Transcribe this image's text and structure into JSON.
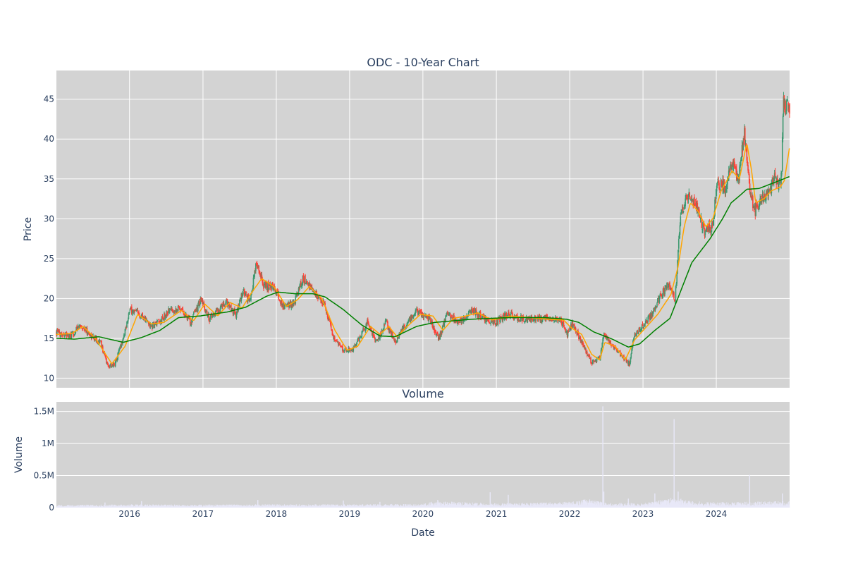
{
  "chart_data": [
    {
      "type": "candlestick",
      "title": "ODC - 10-Year Chart",
      "ylabel": "Price",
      "ylim": [
        8.8,
        48.6
      ],
      "xlim": [
        "2015-01-02",
        "2024-12-31"
      ],
      "y_ticks": [
        10,
        15,
        20,
        25,
        30,
        35,
        40,
        45
      ],
      "grid": true,
      "colors": {
        "up": "#3d9970",
        "down": "#ff4136",
        "ma_short": "#ffa500",
        "ma_long": "#008000",
        "plot_bg": "#d3d3d3",
        "grid": "#ffffff"
      },
      "series": [
        {
          "kind": "ohlc",
          "anchors": [
            [
              "2015-01-02",
              15.8
            ],
            [
              "2015-03-15",
              15.2
            ],
            [
              "2015-05-01",
              16.7
            ],
            [
              "2015-06-15",
              15.5
            ],
            [
              "2015-08-10",
              14.5
            ],
            [
              "2015-09-15",
              11.5
            ],
            [
              "2015-10-20",
              11.8
            ],
            [
              "2015-12-01",
              15.0
            ],
            [
              "2016-01-01",
              18.5
            ],
            [
              "2016-03-01",
              18.0
            ],
            [
              "2016-04-15",
              16.5
            ],
            [
              "2016-06-01",
              17.0
            ],
            [
              "2016-07-15",
              18.5
            ],
            [
              "2016-09-15",
              18.8
            ],
            [
              "2016-11-01",
              17.0
            ],
            [
              "2016-12-20",
              19.8
            ],
            [
              "2017-02-01",
              17.5
            ],
            [
              "2017-03-15",
              18.5
            ],
            [
              "2017-05-01",
              19.5
            ],
            [
              "2017-06-15",
              18.0
            ],
            [
              "2017-07-20",
              21.0
            ],
            [
              "2017-08-20",
              19.5
            ],
            [
              "2017-09-25",
              24.5
            ],
            [
              "2017-11-01",
              21.5
            ],
            [
              "2017-12-20",
              21.5
            ],
            [
              "2018-02-01",
              19.0
            ],
            [
              "2018-04-01",
              19.5
            ],
            [
              "2018-05-15",
              22.5
            ],
            [
              "2018-07-01",
              21.0
            ],
            [
              "2018-09-01",
              19.0
            ],
            [
              "2018-10-15",
              15.0
            ],
            [
              "2018-12-01",
              13.5
            ],
            [
              "2019-01-15",
              13.5
            ],
            [
              "2019-03-01",
              15.5
            ],
            [
              "2019-04-01",
              17.0
            ],
            [
              "2019-05-15",
              14.5
            ],
            [
              "2019-07-01",
              17.0
            ],
            [
              "2019-08-15",
              14.5
            ],
            [
              "2019-10-01",
              16.5
            ],
            [
              "2019-12-01",
              18.5
            ],
            [
              "2020-02-01",
              17.5
            ],
            [
              "2020-03-20",
              15.0
            ],
            [
              "2020-05-01",
              18.0
            ],
            [
              "2020-07-01",
              17.0
            ],
            [
              "2020-09-01",
              18.5
            ],
            [
              "2020-11-01",
              17.5
            ],
            [
              "2021-01-01",
              17.0
            ],
            [
              "2021-03-01",
              18.0
            ],
            [
              "2021-05-01",
              17.5
            ],
            [
              "2021-07-01",
              17.5
            ],
            [
              "2021-09-01",
              17.5
            ],
            [
              "2021-11-15",
              17.5
            ],
            [
              "2021-12-20",
              15.5
            ],
            [
              "2022-01-15",
              17.0
            ],
            [
              "2022-03-01",
              14.5
            ],
            [
              "2022-04-20",
              12.0
            ],
            [
              "2022-06-01",
              12.5
            ],
            [
              "2022-06-20",
              15.5
            ],
            [
              "2022-08-01",
              14.0
            ],
            [
              "2022-09-15",
              12.8
            ],
            [
              "2022-10-25",
              11.8
            ],
            [
              "2022-11-20",
              15.5
            ],
            [
              "2023-01-01",
              16.5
            ],
            [
              "2023-02-15",
              18.0
            ],
            [
              "2023-04-01",
              20.5
            ],
            [
              "2023-05-10",
              21.5
            ],
            [
              "2023-06-10",
              20.0
            ],
            [
              "2023-06-25",
              26.0
            ],
            [
              "2023-07-10",
              30.5
            ],
            [
              "2023-08-20",
              33.5
            ],
            [
              "2023-10-01",
              31.0
            ],
            [
              "2023-11-01",
              28.5
            ],
            [
              "2023-12-15",
              29.0
            ],
            [
              "2024-01-05",
              34.5
            ],
            [
              "2024-02-15",
              34.0
            ],
            [
              "2024-03-20",
              37.0
            ],
            [
              "2024-04-20",
              35.0
            ],
            [
              "2024-05-20",
              41.0
            ],
            [
              "2024-06-15",
              34.0
            ],
            [
              "2024-07-10",
              31.0
            ],
            [
              "2024-08-20",
              33.0
            ],
            [
              "2024-09-25",
              33.5
            ],
            [
              "2024-10-20",
              35.5
            ],
            [
              "2024-11-05",
              34.0
            ],
            [
              "2024-11-20",
              35.0
            ],
            [
              "2024-12-01",
              44.5
            ],
            [
              "2024-12-31",
              43.5
            ]
          ]
        },
        {
          "kind": "ma_short",
          "anchors": [
            [
              "2015-01-02",
              15.5
            ],
            [
              "2015-03-20",
              15.6
            ],
            [
              "2015-05-15",
              16.5
            ],
            [
              "2015-07-15",
              15.0
            ],
            [
              "2015-10-05",
              11.8
            ],
            [
              "2015-12-10",
              14.0
            ],
            [
              "2016-02-10",
              18.0
            ],
            [
              "2016-04-20",
              16.8
            ],
            [
              "2016-06-20",
              17.0
            ],
            [
              "2016-09-15",
              18.5
            ],
            [
              "2016-11-15",
              17.2
            ],
            [
              "2017-01-10",
              19.3
            ],
            [
              "2017-03-15",
              17.8
            ],
            [
              "2017-05-15",
              19.5
            ],
            [
              "2017-07-15",
              18.8
            ],
            [
              "2017-08-25",
              20.5
            ],
            [
              "2017-10-20",
              22.5
            ],
            [
              "2017-12-20",
              21.5
            ],
            [
              "2018-02-20",
              19.0
            ],
            [
              "2018-04-15",
              19.8
            ],
            [
              "2018-06-15",
              21.5
            ],
            [
              "2018-08-15",
              20.0
            ],
            [
              "2018-10-20",
              16.0
            ],
            [
              "2018-12-20",
              13.5
            ],
            [
              "2019-02-10",
              14.0
            ],
            [
              "2019-04-15",
              16.5
            ],
            [
              "2019-06-01",
              15.5
            ],
            [
              "2019-07-15",
              16.5
            ],
            [
              "2019-08-25",
              15.2
            ],
            [
              "2019-10-15",
              16.5
            ],
            [
              "2019-12-20",
              18.0
            ],
            [
              "2020-02-20",
              17.8
            ],
            [
              "2020-04-10",
              16.0
            ],
            [
              "2020-06-01",
              17.5
            ],
            [
              "2020-08-01",
              17.8
            ],
            [
              "2020-10-01",
              18.2
            ],
            [
              "2020-12-10",
              17.3
            ],
            [
              "2021-03-15",
              17.8
            ],
            [
              "2021-06-15",
              17.6
            ],
            [
              "2021-09-15",
              17.4
            ],
            [
              "2021-12-01",
              17.3
            ],
            [
              "2022-01-10",
              16.3
            ],
            [
              "2022-03-01",
              15.5
            ],
            [
              "2022-04-20",
              13.0
            ],
            [
              "2022-05-30",
              12.3
            ],
            [
              "2022-06-25",
              14.5
            ],
            [
              "2022-08-15",
              14.0
            ],
            [
              "2022-10-05",
              12.3
            ],
            [
              "2022-11-20",
              14.8
            ],
            [
              "2023-01-20",
              16.5
            ],
            [
              "2023-03-15",
              18.0
            ],
            [
              "2023-05-20",
              20.5
            ],
            [
              "2023-06-25",
              24.0
            ],
            [
              "2023-07-25",
              29.0
            ],
            [
              "2023-08-25",
              32.0
            ],
            [
              "2023-10-01",
              31.0
            ],
            [
              "2023-11-10",
              29.0
            ],
            [
              "2023-12-15",
              30.0
            ],
            [
              "2024-01-25",
              33.5
            ],
            [
              "2024-03-20",
              36.0
            ],
            [
              "2024-04-25",
              35.0
            ],
            [
              "2024-06-01",
              39.5
            ],
            [
              "2024-06-25",
              36.0
            ],
            [
              "2024-07-15",
              32.0
            ],
            [
              "2024-08-25",
              32.5
            ],
            [
              "2024-10-01",
              33.5
            ],
            [
              "2024-11-15",
              34.0
            ],
            [
              "2024-12-05",
              34.8
            ],
            [
              "2024-12-31",
              39.0
            ]
          ]
        },
        {
          "kind": "ma_long",
          "anchors": [
            [
              "2015-01-02",
              15.0
            ],
            [
              "2015-04-01",
              14.9
            ],
            [
              "2015-08-01",
              15.2
            ],
            [
              "2015-12-01",
              14.5
            ],
            [
              "2016-03-01",
              15.1
            ],
            [
              "2016-06-01",
              16.0
            ],
            [
              "2016-09-01",
              17.6
            ],
            [
              "2016-12-15",
              17.8
            ],
            [
              "2017-05-01",
              18.3
            ],
            [
              "2017-08-01",
              18.9
            ],
            [
              "2017-11-15",
              20.3
            ],
            [
              "2018-01-10",
              20.8
            ],
            [
              "2018-04-01",
              20.6
            ],
            [
              "2018-07-01",
              20.6
            ],
            [
              "2018-09-01",
              20.2
            ],
            [
              "2018-12-01",
              18.6
            ],
            [
              "2019-03-01",
              16.7
            ],
            [
              "2019-06-01",
              15.3
            ],
            [
              "2019-08-15",
              15.2
            ],
            [
              "2019-12-01",
              16.5
            ],
            [
              "2020-03-01",
              17.0
            ],
            [
              "2020-09-01",
              17.4
            ],
            [
              "2021-03-01",
              17.6
            ],
            [
              "2021-09-01",
              17.6
            ],
            [
              "2021-12-15",
              17.4
            ],
            [
              "2022-02-15",
              17.0
            ],
            [
              "2022-05-01",
              15.8
            ],
            [
              "2022-08-01",
              14.9
            ],
            [
              "2022-10-20",
              13.9
            ],
            [
              "2022-12-15",
              14.3
            ],
            [
              "2023-03-01",
              16.0
            ],
            [
              "2023-05-15",
              17.5
            ],
            [
              "2023-07-01",
              20.5
            ],
            [
              "2023-09-01",
              24.5
            ],
            [
              "2023-12-01",
              27.5
            ],
            [
              "2024-02-01",
              30.0
            ],
            [
              "2024-03-15",
              32.0
            ],
            [
              "2024-05-01",
              33.0
            ],
            [
              "2024-06-01",
              33.7
            ],
            [
              "2024-08-01",
              33.8
            ],
            [
              "2024-09-01",
              34.1
            ],
            [
              "2024-10-01",
              34.4
            ],
            [
              "2024-11-01",
              34.7
            ],
            [
              "2024-12-31",
              35.3
            ]
          ]
        }
      ]
    },
    {
      "type": "bar",
      "title": "Volume",
      "ylabel": "Volume",
      "xlabel": "Date",
      "ylim": [
        0,
        1650000
      ],
      "y_ticks": [
        0,
        500000,
        1000000,
        1500000
      ],
      "y_tick_labels": [
        "0",
        "0.5M",
        "1M",
        "1.5M"
      ],
      "x_ticks": [
        "2016",
        "2017",
        "2018",
        "2019",
        "2020",
        "2021",
        "2022",
        "2023",
        "2024"
      ],
      "colors": {
        "bar": "#e8e8f8",
        "plot_bg": "#d3d3d3",
        "grid": "#ffffff"
      },
      "baseline": [
        [
          "2015-01-02",
          25000
        ],
        [
          "2016-01-01",
          30000
        ],
        [
          "2017-01-01",
          28000
        ],
        [
          "2018-01-01",
          32000
        ],
        [
          "2019-01-01",
          30000
        ],
        [
          "2020-01-01",
          35000
        ],
        [
          "2020-03-01",
          60000
        ],
        [
          "2021-01-01",
          40000
        ],
        [
          "2022-01-01",
          55000
        ],
        [
          "2022-04-01",
          80000
        ],
        [
          "2022-07-01",
          45000
        ],
        [
          "2023-01-01",
          40000
        ],
        [
          "2023-06-01",
          100000
        ],
        [
          "2023-09-01",
          60000
        ],
        [
          "2024-01-01",
          50000
        ],
        [
          "2024-12-31",
          60000
        ]
      ],
      "spikes": [
        [
          "2015-09-01",
          80000
        ],
        [
          "2016-03-01",
          100000
        ],
        [
          "2017-10-01",
          120000
        ],
        [
          "2018-12-01",
          110000
        ],
        [
          "2019-06-01",
          90000
        ],
        [
          "2020-03-15",
          120000
        ],
        [
          "2020-12-01",
          240000
        ],
        [
          "2021-03-01",
          200000
        ],
        [
          "2022-06-15",
          1580000
        ],
        [
          "2022-06-20",
          250000
        ],
        [
          "2022-10-20",
          140000
        ],
        [
          "2023-03-01",
          220000
        ],
        [
          "2023-06-05",
          1380000
        ],
        [
          "2023-06-25",
          250000
        ],
        [
          "2024-06-15",
          510000
        ],
        [
          "2024-11-25",
          220000
        ]
      ]
    }
  ]
}
